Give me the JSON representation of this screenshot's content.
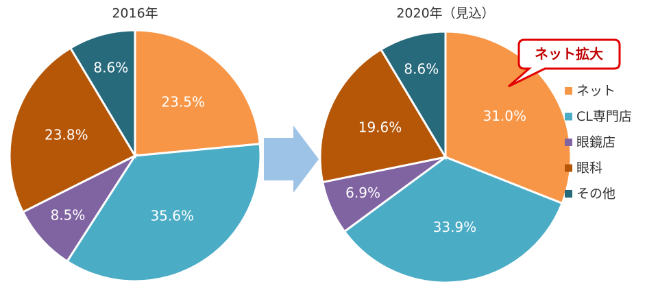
{
  "chart_data": [
    {
      "type": "pie",
      "title": "2016年",
      "categories": [
        "ネット",
        "CL専門店",
        "眼鏡店",
        "眼科",
        "その他"
      ],
      "values": [
        23.5,
        35.6,
        8.5,
        23.8,
        8.6
      ],
      "value_labels": [
        "23.5%",
        "35.6%",
        "8.5%",
        "23.8%",
        "8.6%"
      ],
      "colors": [
        "#F79646",
        "#4BACC6",
        "#8064A2",
        "#B65708",
        "#276A7C"
      ]
    },
    {
      "type": "pie",
      "title": "2020年（見込）",
      "categories": [
        "ネット",
        "CL専門店",
        "眼鏡店",
        "眼科",
        "その他"
      ],
      "values": [
        31.0,
        33.9,
        6.9,
        19.6,
        8.6
      ],
      "value_labels": [
        "31.0%",
        "33.9%",
        "6.9%",
        "19.6%",
        "8.6%"
      ],
      "colors": [
        "#F79646",
        "#4BACC6",
        "#8064A2",
        "#B65708",
        "#276A7C"
      ],
      "annotation": "ネット拡大",
      "legend": "right"
    }
  ]
}
